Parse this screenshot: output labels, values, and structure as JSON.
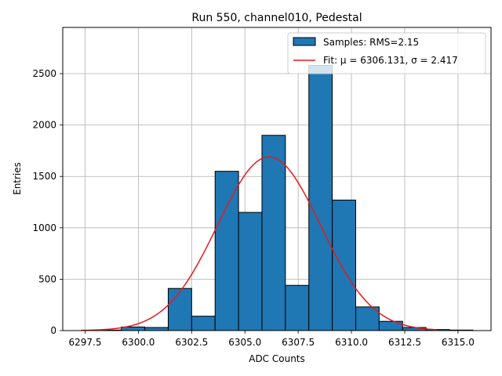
{
  "chart_data": {
    "type": "bar",
    "title": "Run 550, channel010, Pedestal",
    "xlabel": "ADC Counts",
    "ylabel": "Entries",
    "xlim": [
      6296.45,
      6316.55
    ],
    "ylim": [
      0,
      2950
    ],
    "grid": true,
    "x_ticks": [
      6297.5,
      6300.0,
      6302.5,
      6305.0,
      6307.5,
      6310.0,
      6312.5,
      6315.0
    ],
    "x_tick_labels": [
      "6297.5",
      "6300.0",
      "6302.5",
      "6305.0",
      "6307.5",
      "6310.0",
      "6312.5",
      "6315.0"
    ],
    "y_ticks": [
      0,
      500,
      1000,
      1500,
      2000,
      2500
    ],
    "y_tick_labels": [
      "0",
      "500",
      "1000",
      "1500",
      "2000",
      "2500"
    ],
    "histogram": {
      "name": "Samples: RMS=2.15",
      "color": "#1f77b4",
      "edgecolor": "#000000",
      "bin_edges": [
        6298.1,
        6299.2,
        6300.3,
        6301.4,
        6302.5,
        6303.6,
        6304.7,
        6305.8,
        6306.9,
        6308.0,
        6309.1,
        6310.2,
        6311.3,
        6312.4,
        6313.5,
        6314.6,
        6315.7
      ],
      "counts": [
        5,
        35,
        30,
        410,
        140,
        1550,
        1150,
        1900,
        440,
        2580,
        1270,
        230,
        90,
        30,
        10,
        5
      ]
    },
    "fit": {
      "name": "Fit: μ = 6306.131, σ = 2.417",
      "color": "#e41a1c",
      "mu": 6306.131,
      "sigma": 2.417,
      "amplitude": 1690,
      "x_range": [
        6297.3,
        6314.0
      ]
    },
    "legend": {
      "placement": "top-right",
      "entries": [
        "Samples: RMS=2.15",
        "Fit: μ = 6306.131, σ = 2.417"
      ]
    }
  }
}
